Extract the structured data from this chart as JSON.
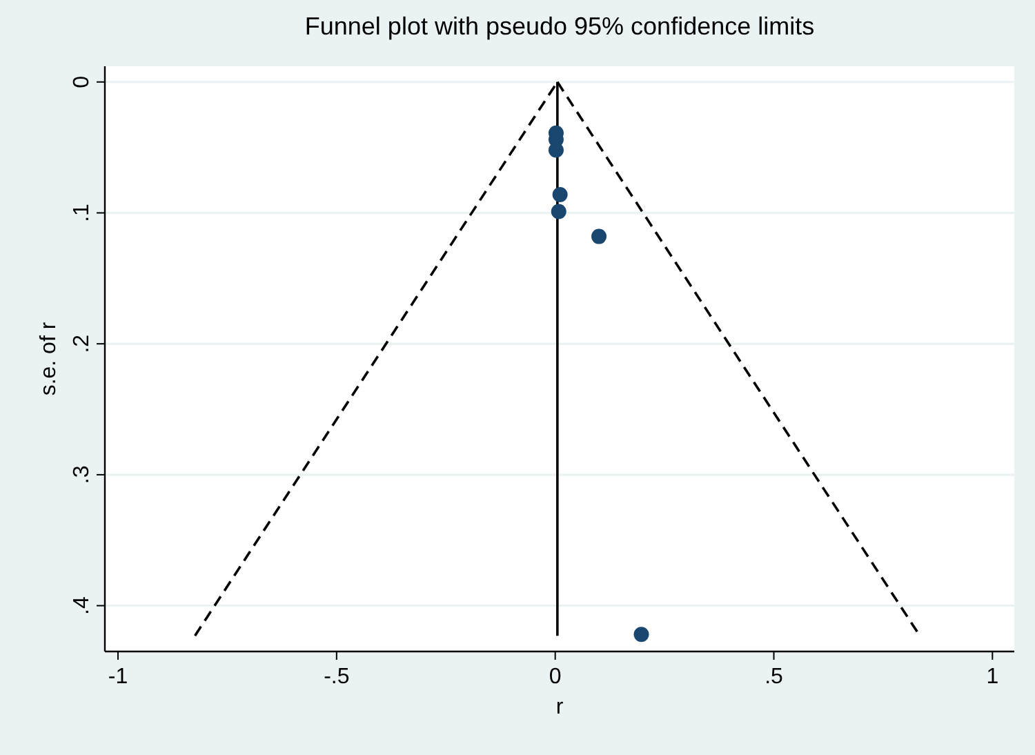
{
  "chart_data": {
    "type": "scatter",
    "title": "Funnel plot with pseudo 95% confidence limits",
    "xlabel": "r",
    "ylabel": "s.e. of r",
    "xlim": [
      -1.03,
      1.05
    ],
    "ylim": [
      0.435,
      -0.012
    ],
    "xticks": [
      -1,
      {
        "value": -0.5,
        "label": "-.5"
      },
      0,
      {
        "value": 0.5,
        "label": ".5"
      },
      1
    ],
    "yticks": [
      0,
      {
        "value": 0.1,
        "label": ".1"
      },
      {
        "value": 0.2,
        "label": ".2"
      },
      {
        "value": 0.3,
        "label": ".3"
      },
      {
        "value": 0.4,
        "label": ".4"
      }
    ],
    "grid": "y",
    "series": [
      {
        "type": "line",
        "color": "#000000",
        "line_style": "dashed",
        "marker": "none",
        "x": [
          -0.824,
          0.005
        ],
        "values": [
          0.423,
          0
        ]
      },
      {
        "type": "line",
        "color": "#000000",
        "line_style": "dashed",
        "marker": "none",
        "x": [
          0.005,
          0.834
        ],
        "values": [
          0,
          0.423
        ]
      },
      {
        "type": "line",
        "color": "#000000",
        "line_style": "solid",
        "marker": "none",
        "x": [
          0.005,
          0.005
        ],
        "values": [
          0,
          0.423
        ]
      },
      {
        "color": "#1a476f",
        "marker": "circle",
        "x": [
          0.002,
          0.002,
          0.002,
          0.011,
          0.008,
          0.1,
          0.197
        ],
        "values": [
          0.039,
          0.044,
          0.052,
          0.086,
          0.099,
          0.118,
          0.422
        ]
      }
    ]
  }
}
